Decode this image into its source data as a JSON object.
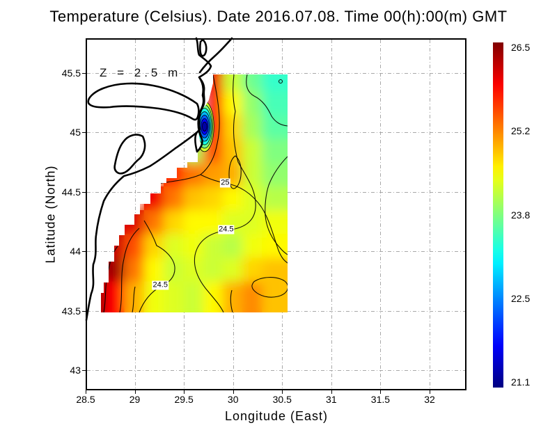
{
  "title": "Temperature (Celsius). Date 2016.07.08. Time 00(h):00(m) GMT",
  "annotation": "Z = 2.5 m",
  "axes": {
    "x": {
      "label": "Longitude (East)",
      "ticks": [
        "28.5",
        "29",
        "29.5",
        "30",
        "30.5",
        "31",
        "31.5",
        "32"
      ],
      "range": [
        28.5,
        32.37
      ]
    },
    "y": {
      "label": "Latitude (North)",
      "ticks": [
        "45.5",
        "45",
        "44.5",
        "44",
        "43.5",
        "43"
      ],
      "range": [
        42.84,
        45.78
      ]
    }
  },
  "chart_data": {
    "type": "heatmap",
    "title": "Temperature (Celsius). Date 2016.07.08. Time 00(h):00(m) GMT",
    "depth_annotation": "Z = 2.5 m",
    "units": "Celsius",
    "xlabel": "Longitude (East)",
    "ylabel": "Latitude (North)",
    "grid_on": true,
    "colorbar": {
      "position": "right",
      "colormap": "jet",
      "min": 21.1,
      "max": 26.5,
      "tick_labels": [
        "26.5",
        "25.2",
        "23.8",
        "22.5",
        "21.1"
      ],
      "tick_fractions_from_top": [
        0,
        0.25,
        0.5,
        0.75,
        1
      ]
    },
    "data_extent": {
      "lon": [
        28.6,
        30.55
      ],
      "lat": [
        43.5,
        45.5
      ]
    },
    "grid": {
      "lons": [
        28.65,
        28.85,
        29.05,
        29.25,
        29.45,
        29.65,
        29.85,
        30.05,
        30.25,
        30.45
      ],
      "lats": [
        45.4,
        45.2,
        45.0,
        44.8,
        44.6,
        44.4,
        44.2,
        44.0,
        43.8,
        43.6
      ],
      "values": [
        [
          null,
          null,
          null,
          null,
          null,
          null,
          25.9,
          24.2,
          23.7,
          23.4
        ],
        [
          null,
          null,
          null,
          null,
          null,
          23.2,
          25.7,
          24.5,
          23.9,
          23.5
        ],
        [
          null,
          null,
          null,
          null,
          null,
          23.2,
          25.7,
          24.7,
          24.0,
          23.6
        ],
        [
          null,
          null,
          null,
          null,
          null,
          24.0,
          25.4,
          24.8,
          24.2,
          23.8
        ],
        [
          null,
          null,
          null,
          null,
          25.6,
          25.2,
          25.0,
          24.9,
          24.2,
          23.9
        ],
        [
          null,
          null,
          null,
          25.9,
          25.2,
          24.8,
          24.7,
          24.5,
          24.3,
          24.1
        ],
        [
          null,
          null,
          26.0,
          25.2,
          24.7,
          24.5,
          24.5,
          24.3,
          24.3,
          24.4
        ],
        [
          null,
          26.1,
          25.4,
          24.7,
          24.3,
          24.4,
          24.2,
          24.1,
          24.4,
          24.5
        ],
        [
          null,
          26.3,
          25.2,
          24.5,
          24.2,
          24.3,
          24.2,
          24.3,
          24.7,
          24.8
        ],
        [
          26.4,
          25.8,
          24.9,
          24.4,
          24.3,
          24.2,
          24.5,
          24.9,
          25.1,
          24.8
        ]
      ]
    },
    "cold_spot": {
      "description": "coastal upwelling cold core near Danube mouth",
      "lon": 29.71,
      "lat": 45.05,
      "core_value": 21.3,
      "ring_levels": [
        24.5,
        24.0,
        23.5,
        23.0,
        22.5,
        22.0,
        21.5
      ]
    },
    "contour_levels": [
      21.5,
      22.0,
      22.5,
      23.0,
      23.5,
      24.0,
      24.5,
      25.0,
      25.5,
      26.0
    ],
    "contour_labels": [
      {
        "text": "25",
        "lon": 29.92,
        "lat": 44.575
      },
      {
        "text": "24.5",
        "lon": 29.93,
        "lat": 44.18
      },
      {
        "text": "24.5",
        "lon": 29.26,
        "lat": 43.715
      }
    ]
  }
}
